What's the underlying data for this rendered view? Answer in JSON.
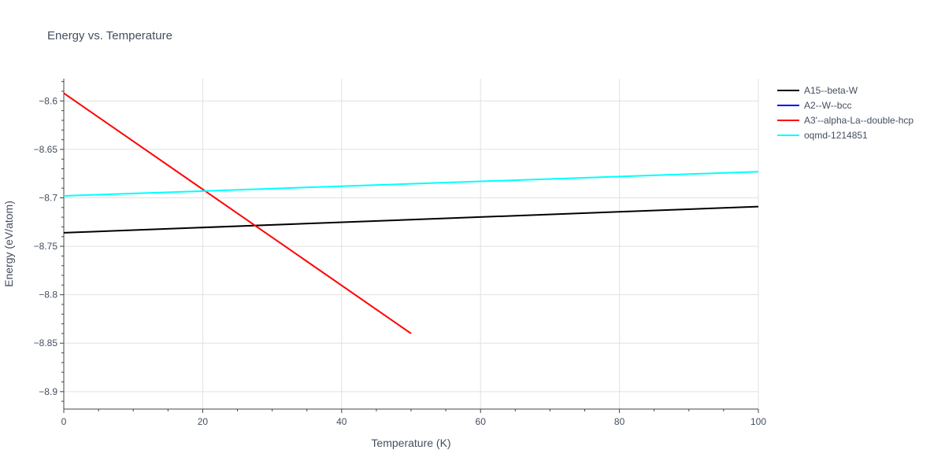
{
  "chart_data": {
    "type": "line",
    "title": "Energy vs. Temperature",
    "xlabel": "Temperature (K)",
    "ylabel": "Energy (eV/atom)",
    "xlim": [
      0,
      100
    ],
    "ylim": [
      -8.918,
      -8.577
    ],
    "x_ticks": [
      {
        "value": 0,
        "label": "0"
      },
      {
        "value": 20,
        "label": "20"
      },
      {
        "value": 40,
        "label": "40"
      },
      {
        "value": 60,
        "label": "60"
      },
      {
        "value": 80,
        "label": "80"
      },
      {
        "value": 100,
        "label": "100"
      }
    ],
    "y_ticks": [
      {
        "value": -8.6,
        "label": "−8.6"
      },
      {
        "value": -8.65,
        "label": "−8.65"
      },
      {
        "value": -8.7,
        "label": "−8.7"
      },
      {
        "value": -8.75,
        "label": "−8.75"
      },
      {
        "value": -8.8,
        "label": "−8.8"
      },
      {
        "value": -8.85,
        "label": "−8.85"
      },
      {
        "value": -8.9,
        "label": "−8.9"
      }
    ],
    "grid": true,
    "legend_position": "top-right",
    "series": [
      {
        "name": "A15--beta-W",
        "color": "#000000",
        "x": [
          0,
          100
        ],
        "y": [
          -8.736,
          -8.709
        ]
      },
      {
        "name": "A2--W--bcc",
        "color": "#0000ff",
        "x": [],
        "y": []
      },
      {
        "name": "A3'--alpha-La--double-hcp",
        "color": "#ff0000",
        "x": [
          0,
          50
        ],
        "y": [
          -8.592,
          -8.84
        ]
      },
      {
        "name": "oqmd-1214851",
        "color": "#00ffff",
        "x": [
          0,
          100
        ],
        "y": [
          -8.698,
          -8.673
        ]
      }
    ]
  }
}
